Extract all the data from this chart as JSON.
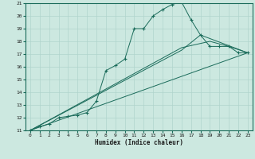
{
  "xlabel": "Humidex (Indice chaleur)",
  "background_color": "#cce8e0",
  "grid_color": "#b0d4cc",
  "line_color": "#1a6b5a",
  "xlim": [
    -0.5,
    23.5
  ],
  "ylim": [
    11,
    21
  ],
  "xticks": [
    0,
    1,
    2,
    3,
    4,
    5,
    6,
    7,
    8,
    9,
    10,
    11,
    12,
    13,
    14,
    15,
    16,
    17,
    18,
    19,
    20,
    21,
    22,
    23
  ],
  "yticks": [
    11,
    12,
    13,
    14,
    15,
    16,
    17,
    18,
    19,
    20,
    21
  ],
  "series_main": {
    "x": [
      0,
      1,
      2,
      3,
      4,
      5,
      6,
      7,
      8,
      9,
      10,
      11,
      12,
      13,
      14,
      15,
      16,
      17,
      18,
      19,
      20,
      21,
      22,
      23
    ],
    "y": [
      11,
      11.3,
      11.5,
      12.0,
      12.1,
      12.2,
      12.4,
      13.3,
      15.7,
      16.1,
      16.6,
      19.0,
      19.0,
      20.0,
      20.5,
      20.9,
      21.1,
      19.7,
      18.5,
      17.6,
      17.6,
      17.6,
      17.1,
      17.1
    ]
  },
  "series_lines": [
    {
      "x": [
        0,
        23
      ],
      "y": [
        11,
        17.1
      ]
    },
    {
      "x": [
        0,
        16,
        18,
        23
      ],
      "y": [
        11,
        17.3,
        18.5,
        17.1
      ]
    },
    {
      "x": [
        0,
        16,
        19,
        21,
        23
      ],
      "y": [
        11,
        17.5,
        18.0,
        17.6,
        17.1
      ]
    }
  ]
}
